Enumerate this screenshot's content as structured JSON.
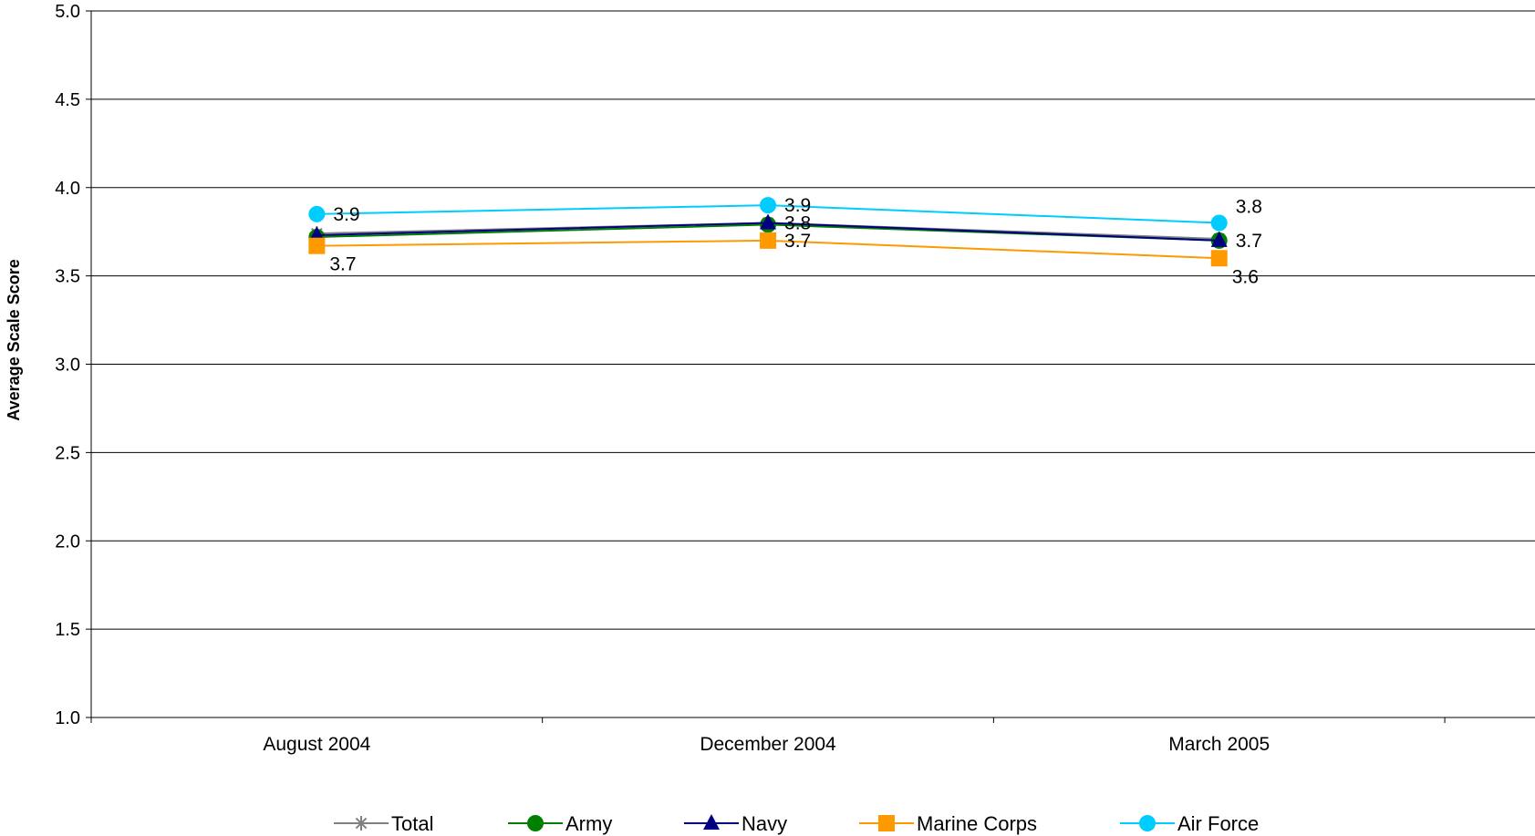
{
  "chart_data": {
    "type": "line",
    "title": "",
    "xlabel": "",
    "ylabel": "Average Scale Score",
    "categories": [
      "August 2004",
      "December 2004",
      "March 2005"
    ],
    "ylim": [
      1.0,
      5.0
    ],
    "yticks": [
      "1.0",
      "1.5",
      "2.0",
      "2.5",
      "3.0",
      "3.5",
      "4.0",
      "4.5",
      "5.0"
    ],
    "grid": true,
    "legend_position": "bottom",
    "series": [
      {
        "name": "Total",
        "color": "#808080",
        "marker": "star",
        "values": [
          3.74,
          3.8,
          3.71
        ]
      },
      {
        "name": "Army",
        "color": "#008000",
        "marker": "circle",
        "values": [
          3.72,
          3.79,
          3.7
        ]
      },
      {
        "name": "Navy",
        "color": "#000080",
        "marker": "triangle",
        "values": [
          3.73,
          3.8,
          3.7
        ]
      },
      {
        "name": "Marine Corps",
        "color": "#FF9900",
        "marker": "square",
        "values": [
          3.67,
          3.7,
          3.6
        ]
      },
      {
        "name": "Air Force",
        "color": "#00CCFF",
        "marker": "circle",
        "values": [
          3.85,
          3.9,
          3.8
        ]
      }
    ],
    "data_labels": [
      {
        "category": "August 2004",
        "text": "3.9",
        "anchor_value": 3.85,
        "placement": "right"
      },
      {
        "category": "August 2004",
        "text": "3.7",
        "anchor_value": 3.67,
        "placement": "below-right"
      },
      {
        "category": "December 2004",
        "text": "3.9",
        "anchor_value": 3.9,
        "placement": "right"
      },
      {
        "category": "December 2004",
        "text": "3.8",
        "anchor_value": 3.8,
        "placement": "right"
      },
      {
        "category": "December 2004",
        "text": "3.7",
        "anchor_value": 3.7,
        "placement": "right"
      },
      {
        "category": "March 2005",
        "text": "3.8",
        "anchor_value": 3.8,
        "placement": "above-right"
      },
      {
        "category": "March 2005",
        "text": "3.7",
        "anchor_value": 3.7,
        "placement": "right"
      },
      {
        "category": "March 2005",
        "text": "3.6",
        "anchor_value": 3.6,
        "placement": "below-right"
      }
    ]
  }
}
